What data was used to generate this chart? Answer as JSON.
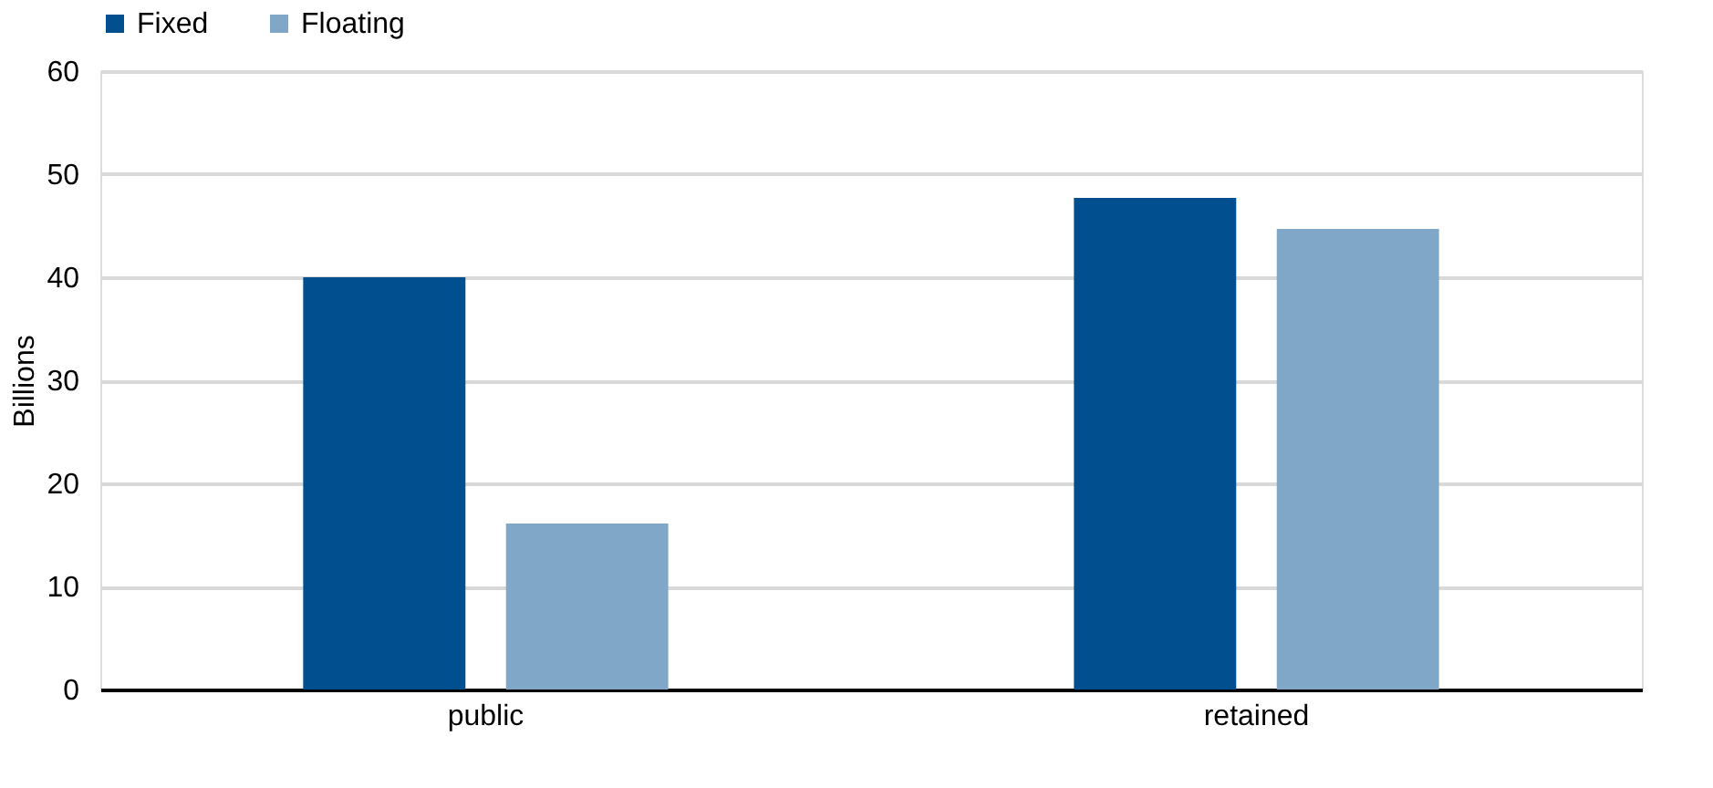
{
  "chart_data": {
    "type": "bar",
    "ylabel": "Billions",
    "categories": [
      "public",
      "retained"
    ],
    "series": [
      {
        "name": "Fixed",
        "color": "#024f8f",
        "values": [
          40,
          47.7
        ]
      },
      {
        "name": "Floating",
        "color": "#81a7c8",
        "values": [
          16.1,
          44.7
        ]
      }
    ],
    "ylim": [
      0,
      60
    ],
    "yticks": [
      0,
      10,
      20,
      30,
      40,
      50,
      60
    ],
    "grid": "y",
    "legend": "top"
  }
}
